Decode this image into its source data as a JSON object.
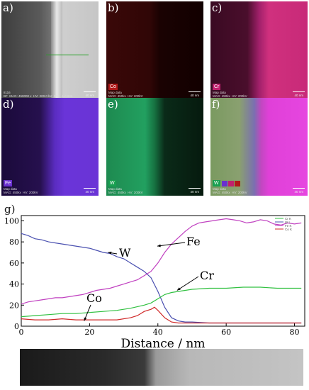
{
  "panels": [
    {
      "letter": "a)",
      "element": "",
      "meta": "8116\nBF  MAG: 450000 x  HV: 200.0 kV  WD: -1.0 mm",
      "scale": "40 nm"
    },
    {
      "letter": "b)",
      "element": "Co",
      "meta": "Map data\nMAG: 450kx  HV: 200kV",
      "scale": "40 nm",
      "color": "#d42020"
    },
    {
      "letter": "c)",
      "element": "Cr",
      "meta": "Map data\nMAG: 450kx  HV: 200kV",
      "scale": "40 nm",
      "color": "#e0207a"
    },
    {
      "letter": "d)",
      "element": "Fe",
      "meta": "Map data\nMAG: 450kx  HV: 200kV",
      "scale": "40 nm",
      "color": "#6a2fd6"
    },
    {
      "letter": "e)",
      "element": "W",
      "meta": "Map data\nMAG: 450kx  HV: 200kV",
      "scale": "40 nm",
      "color": "#20b060"
    },
    {
      "letter": "f)",
      "element": "W",
      "meta": "Map data\nMAG: 450kx  HV: 200kV",
      "scale": "40 nm",
      "color": "#20b060"
    }
  ],
  "chart_label": "g)",
  "chart_data": {
    "type": "line",
    "xlabel": "Distance / nm",
    "ylabel": "",
    "xlim": [
      0,
      83
    ],
    "ylim": [
      0,
      105
    ],
    "xticks": [
      0,
      20,
      40,
      60,
      80
    ],
    "yticks": [
      0,
      20,
      40,
      60,
      80,
      100
    ],
    "legend": [
      "Cr K",
      "W L",
      "Fe K",
      "Co K"
    ],
    "series": [
      {
        "name": "W",
        "color": "#4a50b0",
        "x": [
          0,
          2,
          4,
          6,
          8,
          10,
          12,
          14,
          16,
          18,
          20,
          22,
          24,
          26,
          28,
          30,
          32,
          34,
          36,
          38,
          40,
          42,
          44,
          46,
          48,
          50,
          55,
          60,
          65,
          70,
          75,
          80,
          82
        ],
        "y": [
          88,
          86,
          83,
          82,
          80,
          79,
          78,
          77,
          76,
          75,
          74,
          72,
          70,
          69,
          66,
          64,
          60,
          56,
          52,
          46,
          33,
          18,
          8,
          5,
          4,
          4,
          3,
          3,
          3,
          3,
          3,
          3,
          3
        ]
      },
      {
        "name": "Fe",
        "color": "#c040c0",
        "x": [
          0,
          2,
          4,
          6,
          8,
          10,
          12,
          14,
          16,
          18,
          20,
          22,
          24,
          26,
          28,
          30,
          32,
          34,
          36,
          38,
          40,
          42,
          44,
          46,
          48,
          50,
          52,
          54,
          56,
          58,
          60,
          62,
          64,
          66,
          68,
          70,
          72,
          74,
          76,
          78,
          80,
          82
        ],
        "y": [
          21,
          23,
          24,
          25,
          26,
          27,
          27,
          28,
          29,
          30,
          32,
          34,
          35,
          36,
          38,
          40,
          42,
          44,
          48,
          52,
          60,
          70,
          78,
          84,
          90,
          95,
          98,
          99,
          100,
          101,
          102,
          101,
          100,
          98,
          99,
          101,
          100,
          97,
          96,
          98,
          97,
          98
        ]
      },
      {
        "name": "Cr",
        "color": "#30c040",
        "x": [
          0,
          4,
          8,
          12,
          16,
          20,
          24,
          28,
          32,
          36,
          38,
          40,
          42,
          44,
          46,
          48,
          50,
          55,
          60,
          65,
          70,
          75,
          80,
          82
        ],
        "y": [
          9,
          10,
          11,
          12,
          12,
          13,
          14,
          15,
          17,
          20,
          22,
          26,
          30,
          32,
          33,
          34,
          35,
          36,
          36,
          37,
          37,
          36,
          36,
          36
        ]
      },
      {
        "name": "Co",
        "color": "#d02828",
        "x": [
          0,
          4,
          8,
          12,
          16,
          20,
          24,
          28,
          32,
          34,
          36,
          38,
          39,
          40,
          42,
          44,
          46,
          50,
          55,
          60,
          65,
          70,
          75,
          80,
          82
        ],
        "y": [
          7,
          6,
          6,
          7,
          6,
          6,
          6,
          6,
          8,
          10,
          14,
          16,
          18,
          15,
          8,
          4,
          3,
          3,
          3,
          3,
          3,
          3,
          3,
          3,
          3
        ]
      }
    ],
    "annotations": [
      {
        "text": "W",
        "x": 27,
        "y": 72
      },
      {
        "text": "Fe",
        "x": 44,
        "y": 78
      },
      {
        "text": "Cr",
        "x": 50,
        "y": 38
      },
      {
        "text": "Co",
        "x": 20,
        "y": 6
      }
    ]
  }
}
